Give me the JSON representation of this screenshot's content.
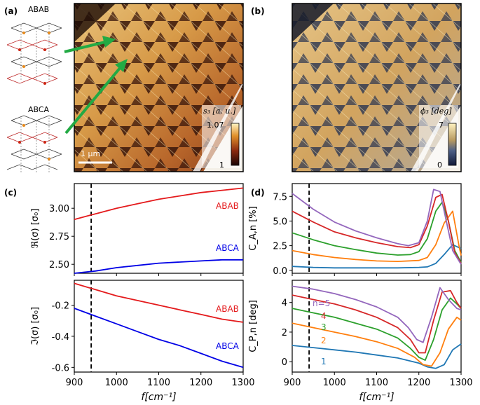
{
  "panels": {
    "a": {
      "label": "(a)",
      "structures": [
        "ABAB",
        "ABCA"
      ],
      "scalebar": "1 μm",
      "colorbar": {
        "title": "s₃ [a. u.]",
        "max": "1.07",
        "min": "1"
      }
    },
    "b": {
      "label": "(b)",
      "colorbar": {
        "title": "ϕ₃ [deg]",
        "max": "7",
        "min": "0"
      }
    },
    "c": {
      "label": "(c)"
    },
    "d": {
      "label": "(d)",
      "n_label": "n=5"
    }
  },
  "colors": {
    "ABAB": "#e41a1c",
    "ABCA": "#0000e6",
    "arrow": "#22aa44"
  },
  "chart_data": [
    {
      "id": "c-top",
      "type": "line",
      "xlim": [
        900,
        1300
      ],
      "ylim": [
        2.42,
        3.22
      ],
      "yticks": [
        "2.50",
        "2.75",
        "3.00"
      ],
      "ytick_values": [
        2.5,
        2.75,
        3.0
      ],
      "ylabel": "ℜ(σ) [σ₀]",
      "vline": 940,
      "series": [
        {
          "name": "ABAB",
          "color": "#e41a1c",
          "x": [
            900,
            950,
            1000,
            1050,
            1100,
            1150,
            1200,
            1250,
            1300
          ],
          "y": [
            2.9,
            2.95,
            3.0,
            3.04,
            3.08,
            3.11,
            3.14,
            3.16,
            3.18
          ]
        },
        {
          "name": "ABCA",
          "color": "#0000e6",
          "x": [
            900,
            950,
            1000,
            1050,
            1100,
            1150,
            1200,
            1250,
            1300
          ],
          "y": [
            2.42,
            2.44,
            2.47,
            2.49,
            2.51,
            2.52,
            2.53,
            2.54,
            2.54
          ]
        }
      ]
    },
    {
      "id": "c-bot",
      "type": "line",
      "xlim": [
        900,
        1300
      ],
      "ylim": [
        -0.63,
        -0.04
      ],
      "xticks": [
        "900",
        "1000",
        "1100",
        "1200",
        "1300"
      ],
      "xtick_values": [
        900,
        1000,
        1100,
        1200,
        1300
      ],
      "yticks": [
        "-0.6",
        "-0.4",
        "-0.2"
      ],
      "ytick_values": [
        -0.6,
        -0.4,
        -0.2
      ],
      "ylabel": "ℑ(σ) [σ₀]",
      "xlabel": "f[cm⁻¹]",
      "vline": 940,
      "series": [
        {
          "name": "ABAB",
          "color": "#e41a1c",
          "x": [
            900,
            950,
            1000,
            1050,
            1100,
            1150,
            1200,
            1250,
            1300
          ],
          "y": [
            -0.06,
            -0.1,
            -0.14,
            -0.17,
            -0.2,
            -0.23,
            -0.26,
            -0.29,
            -0.31
          ]
        },
        {
          "name": "ABCA",
          "color": "#0000e6",
          "x": [
            900,
            950,
            1000,
            1050,
            1100,
            1150,
            1200,
            1250,
            1300
          ],
          "y": [
            -0.22,
            -0.27,
            -0.32,
            -0.37,
            -0.42,
            -0.46,
            -0.51,
            -0.56,
            -0.6
          ]
        }
      ]
    },
    {
      "id": "d-top",
      "type": "line",
      "xlim": [
        900,
        1300
      ],
      "ylim": [
        -0.3,
        8.8
      ],
      "yticks": [
        "0.0",
        "2.5",
        "5.0",
        "7.5"
      ],
      "ytick_values": [
        0,
        2.5,
        5.0,
        7.5
      ],
      "ylabel": "C_A,n [%]",
      "vline": 940,
      "series": [
        {
          "name": "1",
          "color": "#1f77b4",
          "x": [
            900,
            950,
            1000,
            1050,
            1100,
            1150,
            1200,
            1220,
            1240,
            1260,
            1280,
            1300
          ],
          "y": [
            0.4,
            0.3,
            0.25,
            0.25,
            0.25,
            0.25,
            0.3,
            0.35,
            0.7,
            1.6,
            2.6,
            2.2
          ]
        },
        {
          "name": "2",
          "color": "#ff7f0e",
          "x": [
            900,
            950,
            1000,
            1050,
            1100,
            1150,
            1200,
            1220,
            1240,
            1260,
            1280,
            1295,
            1300
          ],
          "y": [
            2.0,
            1.6,
            1.3,
            1.1,
            0.95,
            0.9,
            1.0,
            1.3,
            2.6,
            4.8,
            6.0,
            2.5,
            1.5
          ]
        },
        {
          "name": "3",
          "color": "#2ca02c",
          "x": [
            900,
            950,
            1000,
            1050,
            1100,
            1150,
            1180,
            1200,
            1220,
            1240,
            1255,
            1270,
            1285,
            1300
          ],
          "y": [
            3.8,
            3.1,
            2.5,
            2.1,
            1.75,
            1.55,
            1.6,
            1.9,
            3.2,
            6.0,
            6.9,
            5.0,
            2.0,
            0.8
          ]
        },
        {
          "name": "4",
          "color": "#d62728",
          "x": [
            900,
            950,
            1000,
            1050,
            1100,
            1150,
            1180,
            1200,
            1220,
            1240,
            1255,
            1270,
            1285,
            1300
          ],
          "y": [
            6.0,
            4.9,
            3.9,
            3.3,
            2.8,
            2.4,
            2.3,
            2.6,
            4.5,
            7.4,
            7.7,
            5.0,
            1.8,
            0.7
          ]
        },
        {
          "name": "5",
          "color": "#9467bd",
          "x": [
            900,
            950,
            1000,
            1050,
            1100,
            1150,
            1175,
            1200,
            1220,
            1235,
            1250,
            1265,
            1280,
            1300
          ],
          "y": [
            7.8,
            6.2,
            4.9,
            4.0,
            3.3,
            2.7,
            2.5,
            2.8,
            5.0,
            8.2,
            8.0,
            5.0,
            2.0,
            0.6
          ]
        }
      ]
    },
    {
      "id": "d-bot",
      "type": "line",
      "xlim": [
        900,
        1300
      ],
      "ylim": [
        -0.7,
        5.5
      ],
      "xticks": [
        "900",
        "1000",
        "1100",
        "1200",
        "1300"
      ],
      "xtick_values": [
        900,
        1000,
        1100,
        1200,
        1300
      ],
      "yticks": [
        "0",
        "2",
        "4"
      ],
      "ytick_values": [
        0,
        2,
        4
      ],
      "ylabel": "C_P,n [deg]",
      "xlabel": "f[cm⁻¹]",
      "vline": 940,
      "series": [
        {
          "name": "1",
          "color": "#1f77b4",
          "x": [
            900,
            950,
            1000,
            1050,
            1100,
            1150,
            1200,
            1220,
            1240,
            1260,
            1280,
            1300
          ],
          "y": [
            1.1,
            0.95,
            0.8,
            0.65,
            0.45,
            0.25,
            -0.1,
            -0.35,
            -0.45,
            -0.2,
            0.8,
            1.2
          ]
        },
        {
          "name": "2",
          "color": "#ff7f0e",
          "x": [
            900,
            950,
            1000,
            1050,
            1100,
            1150,
            1190,
            1210,
            1230,
            1250,
            1270,
            1290,
            1300
          ],
          "y": [
            2.6,
            2.3,
            2.0,
            1.7,
            1.35,
            0.9,
            0.3,
            -0.2,
            -0.3,
            0.6,
            2.2,
            3.0,
            2.8
          ]
        },
        {
          "name": "3",
          "color": "#2ca02c",
          "x": [
            900,
            950,
            1000,
            1050,
            1100,
            1150,
            1180,
            1200,
            1215,
            1235,
            1255,
            1275,
            1290,
            1300
          ],
          "y": [
            3.6,
            3.3,
            3.0,
            2.6,
            2.2,
            1.6,
            0.9,
            0.3,
            0.1,
            1.5,
            3.5,
            4.3,
            3.9,
            3.6
          ]
        },
        {
          "name": "4",
          "color": "#d62728",
          "x": [
            900,
            950,
            1000,
            1050,
            1100,
            1150,
            1180,
            1200,
            1215,
            1235,
            1255,
            1275,
            1290,
            1300
          ],
          "y": [
            4.5,
            4.2,
            3.9,
            3.5,
            3.0,
            2.3,
            1.5,
            0.6,
            0.6,
            2.8,
            4.7,
            4.8,
            4.0,
            3.6
          ]
        },
        {
          "name": "5",
          "color": "#9467bd",
          "x": [
            900,
            950,
            1000,
            1050,
            1100,
            1150,
            1175,
            1195,
            1210,
            1230,
            1250,
            1270,
            1290,
            1300
          ],
          "y": [
            5.1,
            4.9,
            4.6,
            4.2,
            3.7,
            3.0,
            2.3,
            1.5,
            1.3,
            3.0,
            5.0,
            4.2,
            3.6,
            3.5
          ]
        }
      ],
      "labels": [
        "n=5",
        "4",
        "3",
        "2",
        "1"
      ]
    }
  ]
}
